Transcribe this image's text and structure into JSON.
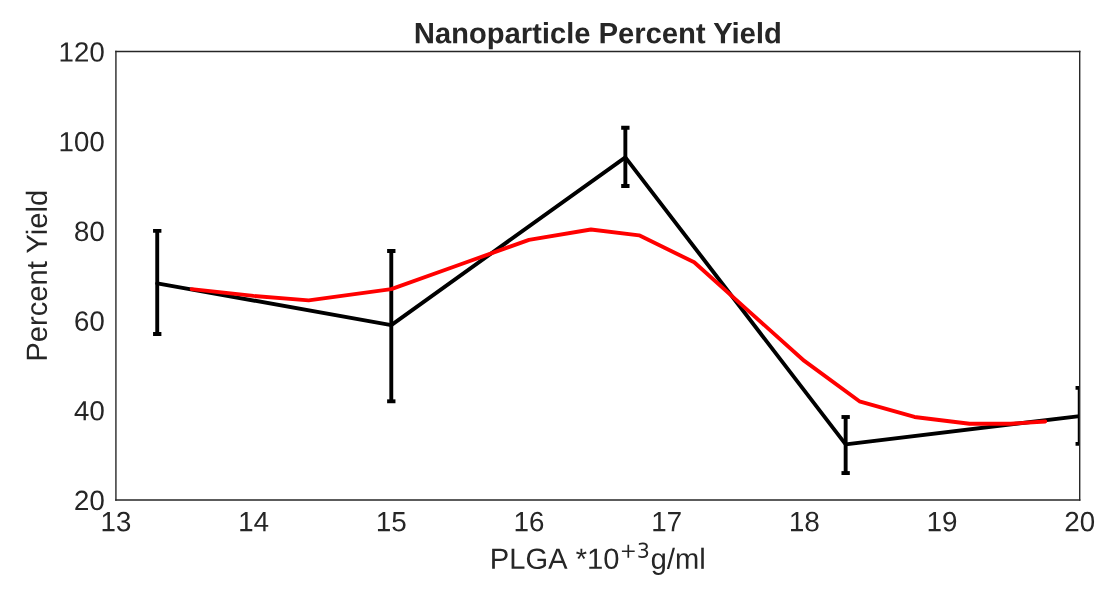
{
  "chart_data": {
    "type": "line",
    "title": "Nanoparticle Percent Yield",
    "xlabel": "PLGA *10$^{+3}$g/ml",
    "ylabel": "Percent Yield",
    "xlim": [
      13,
      20
    ],
    "xticks": [
      13,
      14,
      15,
      16,
      17,
      18,
      19,
      20
    ],
    "ylim": [
      20,
      120
    ],
    "yticks": [
      20,
      40,
      60,
      80,
      100,
      120
    ],
    "series": [
      {
        "color": "#000000",
        "x": [
          13.3,
          15,
          16.7,
          18.3,
          20
        ],
        "values": [
          68.3,
          59,
          96.4,
          32.4,
          38.7
        ],
        "errors": [
          [
            57,
            80
          ],
          [
            42,
            75.5
          ],
          [
            90,
            103
          ],
          [
            26,
            38.5
          ],
          [
            32.5,
            45
          ]
        ]
      },
      {
        "color": "#ff0000",
        "x": [
          13.55,
          14,
          14.4,
          15,
          15.5,
          16,
          16.45,
          16.8,
          17.2,
          17.6,
          18,
          18.4,
          18.8,
          19.2,
          19.5,
          19.75
        ],
        "values": [
          67,
          65.5,
          64.5,
          67,
          72.5,
          78,
          80.3,
          79,
          73,
          62,
          51,
          42,
          38.5,
          37,
          37,
          37.5
        ]
      }
    ],
    "grid": false,
    "legend": false
  }
}
